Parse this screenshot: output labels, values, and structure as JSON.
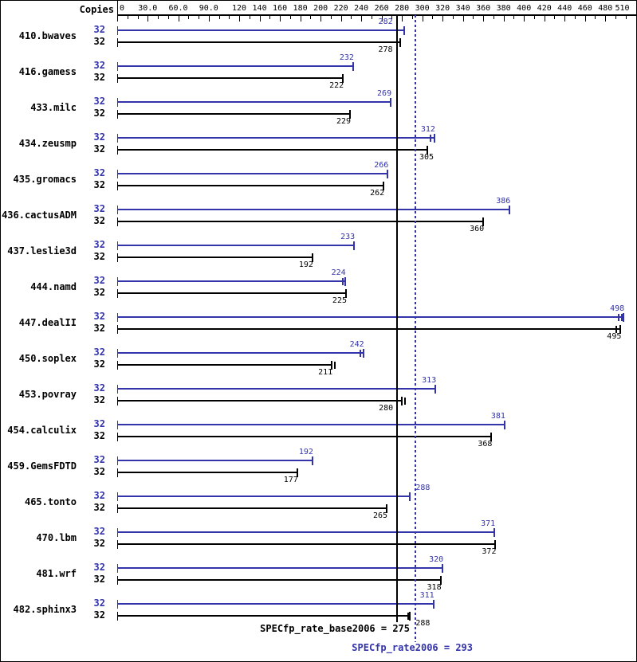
{
  "chart_data": {
    "type": "bar",
    "orientation": "horizontal",
    "copies_header": "Copies",
    "axis": {
      "min": 0,
      "max": 510,
      "minor_tick_step": 10,
      "major_ticks": [
        {
          "value": 0,
          "label": "0"
        },
        {
          "value": 30,
          "label": "30.0"
        },
        {
          "value": 60,
          "label": "60.0"
        },
        {
          "value": 90,
          "label": "90.0"
        },
        {
          "value": 120,
          "label": "120"
        },
        {
          "value": 140,
          "label": "140"
        },
        {
          "value": 160,
          "label": "160"
        },
        {
          "value": 180,
          "label": "180"
        },
        {
          "value": 200,
          "label": "200"
        },
        {
          "value": 220,
          "label": "220"
        },
        {
          "value": 240,
          "label": "240"
        },
        {
          "value": 260,
          "label": "260"
        },
        {
          "value": 280,
          "label": "280"
        },
        {
          "value": 300,
          "label": "300"
        },
        {
          "value": 320,
          "label": "320"
        },
        {
          "value": 340,
          "label": "340"
        },
        {
          "value": 360,
          "label": "360"
        },
        {
          "value": 380,
          "label": "380"
        },
        {
          "value": 400,
          "label": "400"
        },
        {
          "value": 420,
          "label": "420"
        },
        {
          "value": 440,
          "label": "440"
        },
        {
          "value": 460,
          "label": "460"
        },
        {
          "value": 480,
          "label": "480"
        },
        {
          "value": 510,
          "label": "510"
        }
      ]
    },
    "benchmarks": [
      {
        "name": "410.bwaves",
        "peak": {
          "copies": "32",
          "value": 282,
          "label_dx": -14
        },
        "base": {
          "copies": "32",
          "value": 278,
          "label_dx": -9
        }
      },
      {
        "name": "416.gamess",
        "peak": {
          "copies": "32",
          "value": 232
        },
        "base": {
          "copies": "32",
          "value": 222
        }
      },
      {
        "name": "433.milc",
        "peak": {
          "copies": "32",
          "value": 269
        },
        "base": {
          "copies": "32",
          "value": 229
        }
      },
      {
        "name": "434.zeusmp",
        "peak": {
          "copies": "32",
          "value": 312,
          "extra_ticks": [
            308
          ]
        },
        "base": {
          "copies": "32",
          "value": 305,
          "label_dx": 8
        }
      },
      {
        "name": "435.gromacs",
        "peak": {
          "copies": "32",
          "value": 266
        },
        "base": {
          "copies": "32",
          "value": 262
        }
      },
      {
        "name": "436.cactusADM",
        "peak": {
          "copies": "32",
          "value": 386
        },
        "base": {
          "copies": "32",
          "value": 360
        }
      },
      {
        "name": "437.leslie3d",
        "peak": {
          "copies": "32",
          "value": 233
        },
        "base": {
          "copies": "32",
          "value": 192
        }
      },
      {
        "name": "444.namd",
        "peak": {
          "copies": "32",
          "value": 224,
          "extra_ticks": [
            222
          ]
        },
        "base": {
          "copies": "32",
          "value": 225
        }
      },
      {
        "name": "447.dealII",
        "peak": {
          "copies": "32",
          "value": 498,
          "extra_ticks": [
            493,
            496
          ]
        },
        "base": {
          "copies": "32",
          "value": 495,
          "extra_ticks": [
            491
          ]
        }
      },
      {
        "name": "450.soplex",
        "peak": {
          "copies": "32",
          "value": 242,
          "extra_ticks": [
            239
          ]
        },
        "base": {
          "copies": "32",
          "value": 211,
          "extra_ticks": [
            214
          ]
        }
      },
      {
        "name": "453.povray",
        "peak": {
          "copies": "32",
          "value": 313
        },
        "base": {
          "copies": "32",
          "value": 280,
          "label_dx": -11,
          "extra_ticks": [
            283
          ]
        }
      },
      {
        "name": "454.calculix",
        "peak": {
          "copies": "32",
          "value": 381
        },
        "base": {
          "copies": "32",
          "value": 368
        }
      },
      {
        "name": "459.GemsFDTD",
        "peak": {
          "copies": "32",
          "value": 192
        },
        "base": {
          "copies": "32",
          "value": 177
        }
      },
      {
        "name": "465.tonto",
        "peak": {
          "copies": "32",
          "value": 288,
          "label_align": "left"
        },
        "base": {
          "copies": "32",
          "value": 265
        }
      },
      {
        "name": "470.lbm",
        "peak": {
          "copies": "32",
          "value": 371
        },
        "base": {
          "copies": "32",
          "value": 372
        }
      },
      {
        "name": "481.wrf",
        "peak": {
          "copies": "32",
          "value": 320
        },
        "base": {
          "copies": "32",
          "value": 318
        }
      },
      {
        "name": "482.sphinx3",
        "peak": {
          "copies": "32",
          "value": 311
        },
        "base": {
          "copies": "32",
          "value": 288,
          "label_align": "left",
          "extra_ticks": [
            286
          ]
        }
      }
    ],
    "reference_lines": {
      "base": 275,
      "peak": 293
    },
    "summary": {
      "base_text": "SPECfp_rate_base2006 = 275",
      "peak_text": "SPECfp_rate2006 = 293"
    },
    "colors": {
      "peak": "#3333aa",
      "base": "#000000"
    }
  }
}
